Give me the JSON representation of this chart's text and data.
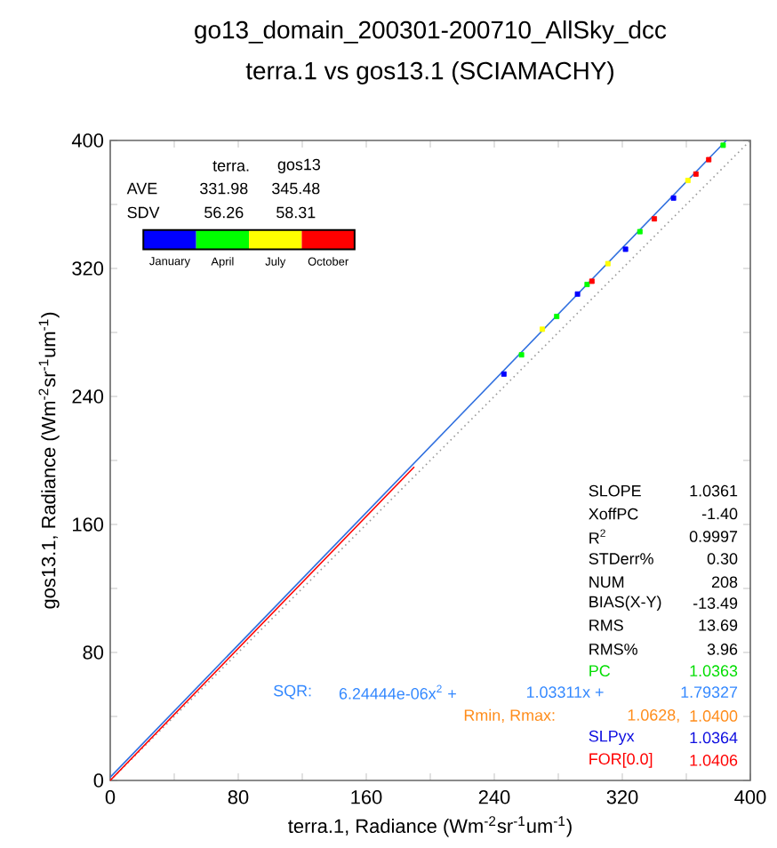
{
  "chart_data": {
    "type": "scatter",
    "title": "go13_domain_200301-200710_AllSky_dcc",
    "subtitle": "terra.1 vs gos13.1 (SCIAMACHY)",
    "xlabel": "terra.1, Radiance (Wm$^{-2}$sr$^{-1}$um$^{-1}$)",
    "ylabel": "gos13.1, Radiance (Wm$^{-2}$sr$^{-1}$um$^{-1}$)",
    "xlim": [
      0,
      400
    ],
    "ylim": [
      0,
      400
    ],
    "xticks": [
      0,
      {
        "value": 40,
        "label": null
      },
      80,
      {
        "value": 120,
        "label": null
      },
      160,
      {
        "value": 200,
        "label": null
      },
      240,
      {
        "value": 280,
        "label": null
      },
      320,
      {
        "value": 360,
        "label": null
      },
      400
    ],
    "yticks": [
      0,
      {
        "value": 40,
        "label": null
      },
      80,
      {
        "value": 120,
        "label": null
      },
      160,
      {
        "value": 200,
        "label": null
      },
      240,
      {
        "value": 280,
        "label": null
      },
      320,
      {
        "value": 360,
        "label": null
      },
      400
    ],
    "legend": "top left",
    "series": [
      {
        "type": "line",
        "line_style": "dotted",
        "color": "#999999",
        "x": [
          0,
          400
        ],
        "values": [
          0,
          400
        ]
      },
      {
        "type": "line",
        "line_style": "solid",
        "color": "#ff0000",
        "x": [
          0,
          190
        ],
        "values": [
          0,
          196
        ]
      },
      {
        "type": "line",
        "line_style": "solid",
        "color": "#2f6fdf",
        "x": [
          0,
          385
        ],
        "values": [
          2,
          400
        ]
      },
      {
        "name": "January",
        "marker": "square",
        "color": "#0000ff",
        "x": [
          246,
          292,
          322,
          352
        ],
        "values": [
          254,
          304,
          332,
          364
        ]
      },
      {
        "name": "April",
        "marker": "square",
        "color": "#00ff00",
        "x": [
          257,
          279,
          298,
          331,
          383
        ],
        "values": [
          266,
          290,
          310,
          343,
          397
        ]
      },
      {
        "name": "July",
        "marker": "square",
        "color": "#ffff00",
        "x": [
          270,
          311,
          361
        ],
        "values": [
          282,
          323,
          375
        ]
      },
      {
        "name": "October",
        "marker": "square",
        "color": "#ff0000",
        "x": [
          301,
          340,
          366,
          374
        ],
        "values": [
          312,
          351,
          379,
          388
        ]
      }
    ],
    "annotations": [
      "terra.",
      "gos13",
      "AVE",
      "331.98",
      "345.48",
      "SDV",
      "56.26",
      "58.31",
      "SLOPE",
      "1.0361",
      "XoffPC",
      "-1.40",
      "R$^{2}$",
      "0.9997",
      "STDerr%",
      "0.30",
      "NUM",
      "208",
      "BIAS(X-Y)",
      "-13.49",
      "RMS",
      "13.69",
      "RMS%",
      "3.96",
      "PC",
      "1.0363",
      "SQR:",
      "6.24444e-06x$^{2}$ +",
      "1.03311x +",
      "1.79327",
      "Rmin, Rmax:",
      "1.0628,",
      "1.0400",
      "SLPyx",
      "1.0364",
      "FOR[0.0]",
      "1.0406"
    ]
  }
}
